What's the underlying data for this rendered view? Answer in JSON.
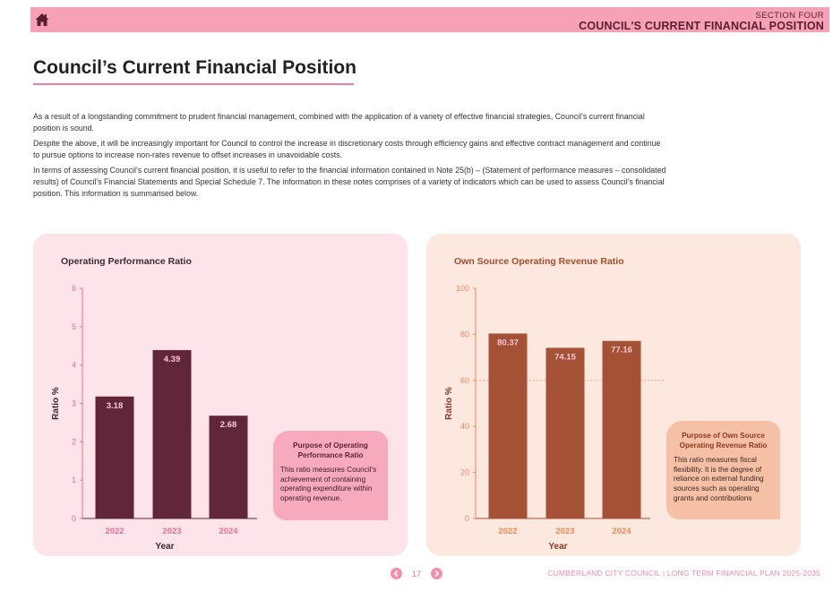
{
  "header": {
    "section_label": "SECTION FOUR",
    "section_title": "COUNCIL'S CURRENT FINANCIAL POSITION",
    "home_icon": "home-icon",
    "bar_color": "#f7a1b7"
  },
  "page_title": "Council’s Current Financial Position",
  "intro": [
    "As a result of a longstanding commitment to prudent financial management, combined with the application of a variety of effective financial strategies, Council’s current financial position is sound.",
    "Despite the above, it will be increasingly important for Council to control the increase in discretionary costs through efficiency gains and effective contract management and continue to pursue options to increase non-rates revenue to offset increases in unavoidable costs.",
    "In terms of assessing Council’s current financial position, it is useful to refer to the financial information contained in Note 25(b) – (Statement of performance measures – consolidated results) of Council’s Financial Statements and Special Schedule 7. The information in these notes comprises of a variety of indicators which can be used to assess Council’s financial position. This information is summarised below."
  ],
  "chart_data": [
    {
      "type": "bar",
      "title": "Operating Performance Ratio",
      "xlabel": "Year",
      "ylabel": "Ratio %",
      "categories": [
        "2022",
        "2023",
        "2024"
      ],
      "values": [
        3.18,
        4.39,
        2.68
      ],
      "data_labels": [
        "3.18",
        "4.39",
        "2.68"
      ],
      "yticks": [
        "0",
        "1",
        "2",
        "3",
        "4",
        "5",
        "6"
      ],
      "ylim": [
        0,
        6
      ],
      "bar_color": "#62263a",
      "axis_color": "#e46f92",
      "benchmark": null
    },
    {
      "type": "bar",
      "title": "Own Source Operating Revenue Ratio",
      "xlabel": "Year",
      "ylabel": "Ratio %",
      "categories": [
        "2022",
        "2023",
        "2024"
      ],
      "values": [
        80.37,
        74.15,
        77.16
      ],
      "data_labels": [
        "80.37",
        "74.15",
        "77.16"
      ],
      "yticks": [
        "0",
        "20",
        "40",
        "60",
        "80",
        "100"
      ],
      "ylim": [
        0,
        100
      ],
      "bar_color": "#a45135",
      "axis_color": "#e88a5a",
      "benchmark": 60
    }
  ],
  "purpose_boxes": [
    {
      "title": "Purpose of Operating Performance Ratio",
      "text": "This ratio measures Council’s achievement of containing operating expenditure within operating revenue."
    },
    {
      "title": "Purpose of Own Source Operating Revenue Ratio",
      "text": "This ratio measures fiscal flexibility. It is the degree of reliance on external funding sources such as operating grants and contributions"
    }
  ],
  "footer": {
    "page_number": "17",
    "text": "CUMBERLAND CITY COUNCIL  |  LONG TERM FINANCIAL PLAN 2025-2035",
    "prev_icon": "chevron-left-icon",
    "next_icon": "chevron-right-icon"
  }
}
